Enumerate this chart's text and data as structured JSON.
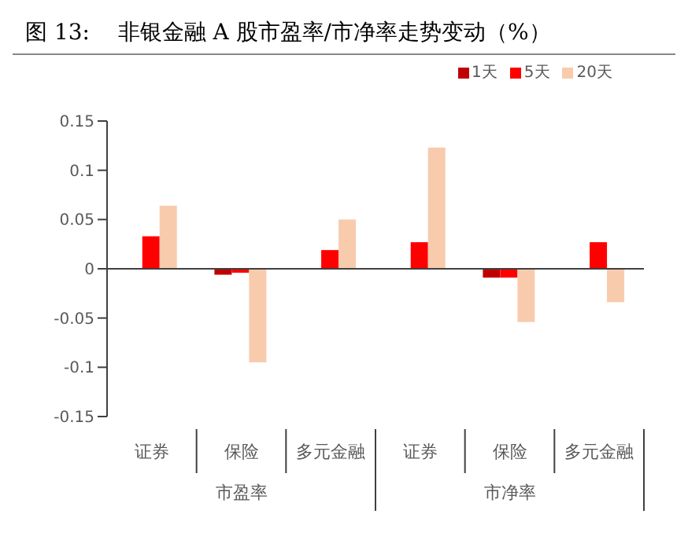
{
  "chart_data": {
    "type": "bar",
    "title": "图 13:    非银金融 A 股市盈率/市净率走势变动（%）",
    "categories": [
      "证券",
      "保险",
      "多元金融",
      "证券",
      "保险",
      "多元金融"
    ],
    "series": [
      {
        "name": "1天",
        "color": "#c00000",
        "values": [
          0,
          -0.006,
          0,
          0,
          -0.009,
          0
        ]
      },
      {
        "name": "5天",
        "color": "#ff0000",
        "values": [
          0.033,
          -0.004,
          0.019,
          0.027,
          -0.009,
          0.027
        ]
      },
      {
        "name": "20天",
        "color": "#f8cbad",
        "values": [
          0.064,
          -0.095,
          0.05,
          0.123,
          -0.054,
          -0.034
        ]
      }
    ],
    "annotations": [
      "市盈率",
      "市净率"
    ],
    "ylim": [
      -0.15,
      0.15
    ],
    "yticks": [
      -0.15,
      -0.1,
      -0.05,
      0,
      0.05,
      0.1,
      0.15
    ],
    "legend": "top right"
  }
}
